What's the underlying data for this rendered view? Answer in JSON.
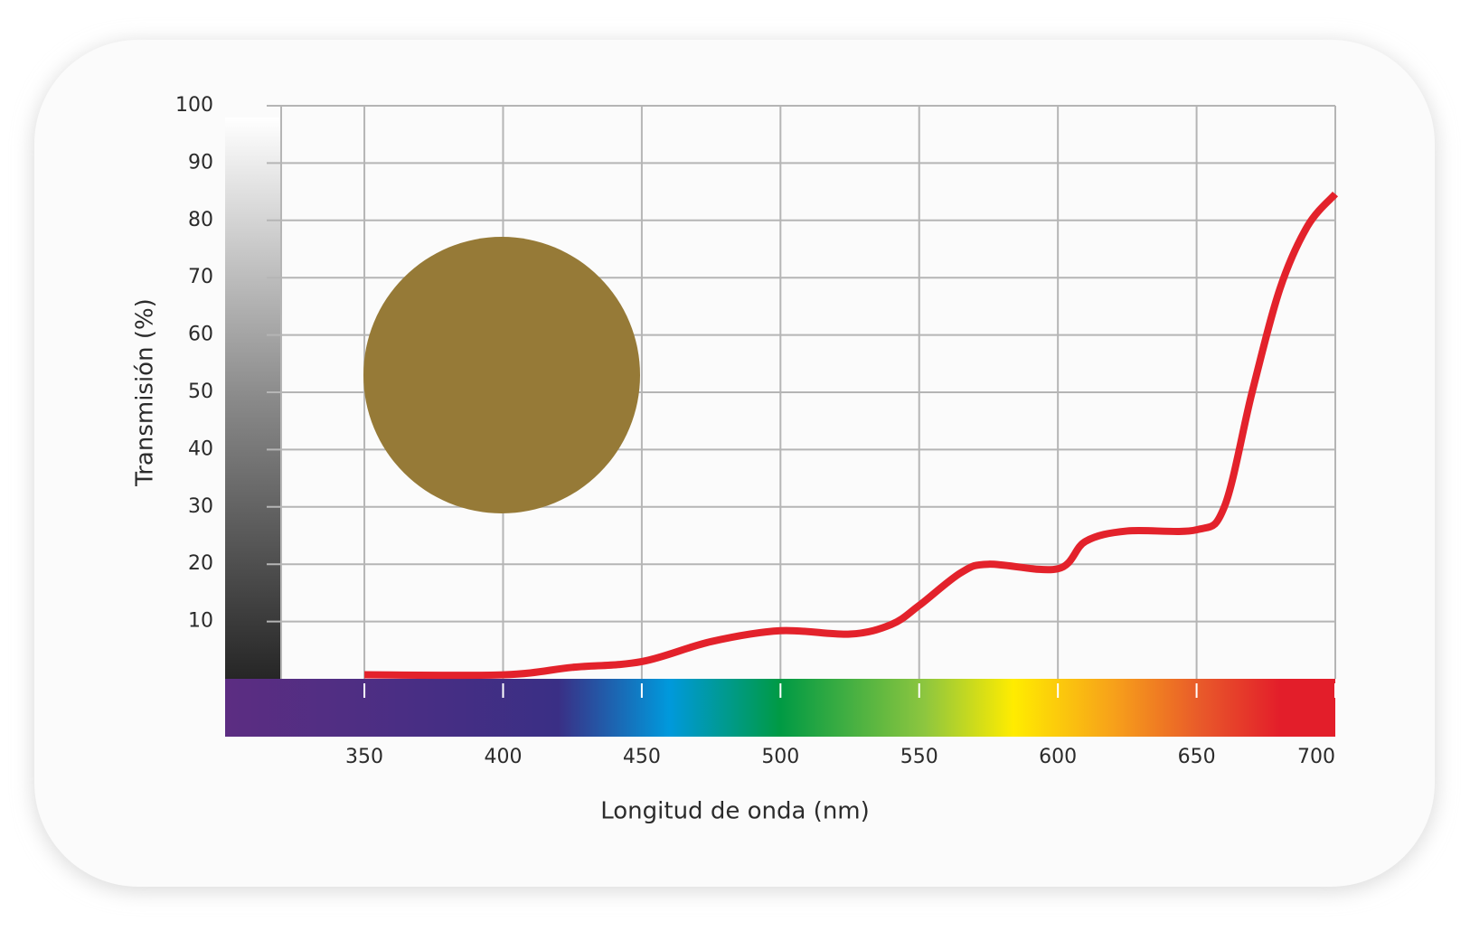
{
  "chart_data": {
    "type": "line",
    "x_label": "Longitud de onda (nm)",
    "y_label": "Transmisión (%)",
    "x": [
      350,
      400,
      425,
      450,
      475,
      500,
      525,
      540,
      550,
      565,
      575,
      600,
      610,
      625,
      650,
      660,
      670,
      680,
      690,
      700
    ],
    "series": [
      {
        "name": "Transmisión",
        "color": "#e3222b",
        "values": [
          0.7,
          0.7,
          2,
          3,
          6.5,
          8.4,
          7.8,
          9.5,
          12.8,
          18.5,
          20,
          19.2,
          24,
          25.8,
          26,
          30,
          50,
          68,
          79,
          84.6
        ]
      }
    ],
    "xlim": [
      320,
      700
    ],
    "ylim": [
      0,
      100
    ],
    "xticks": [
      350,
      400,
      450,
      500,
      550,
      600,
      650,
      700
    ],
    "yticks": [
      10,
      20,
      30,
      40,
      50,
      60,
      70,
      80,
      90,
      100
    ],
    "grid": true
  }
}
